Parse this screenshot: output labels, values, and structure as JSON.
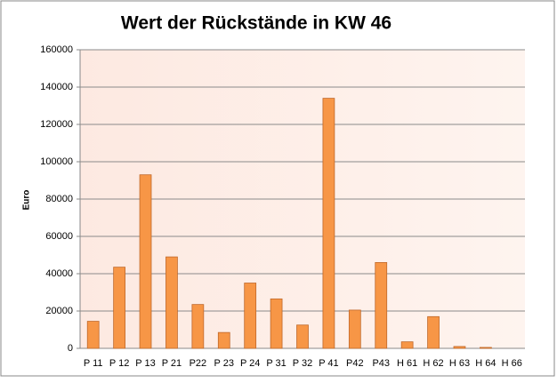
{
  "chart_data": {
    "type": "bar",
    "title": "Wert der Rückstände in KW 46",
    "y_label": "Euro",
    "categories": [
      "P 11",
      "P 12",
      "P 13",
      "P 21",
      "P22",
      "P 23",
      "P 24",
      "P 31",
      "P 32",
      "P 41",
      "P42",
      "P43",
      "H 61",
      "H 62",
      "H 63",
      "H 64",
      "H 66"
    ],
    "values": [
      14500,
      43500,
      93000,
      49000,
      23500,
      8500,
      35000,
      26500,
      12500,
      134000,
      20500,
      46000,
      3500,
      17000,
      1000,
      500,
      0
    ],
    "color": "#f79646",
    "ylim": [
      0,
      160000
    ],
    "yticks": [
      0,
      20000,
      40000,
      60000,
      80000,
      100000,
      120000,
      140000,
      160000
    ],
    "grid": true
  }
}
